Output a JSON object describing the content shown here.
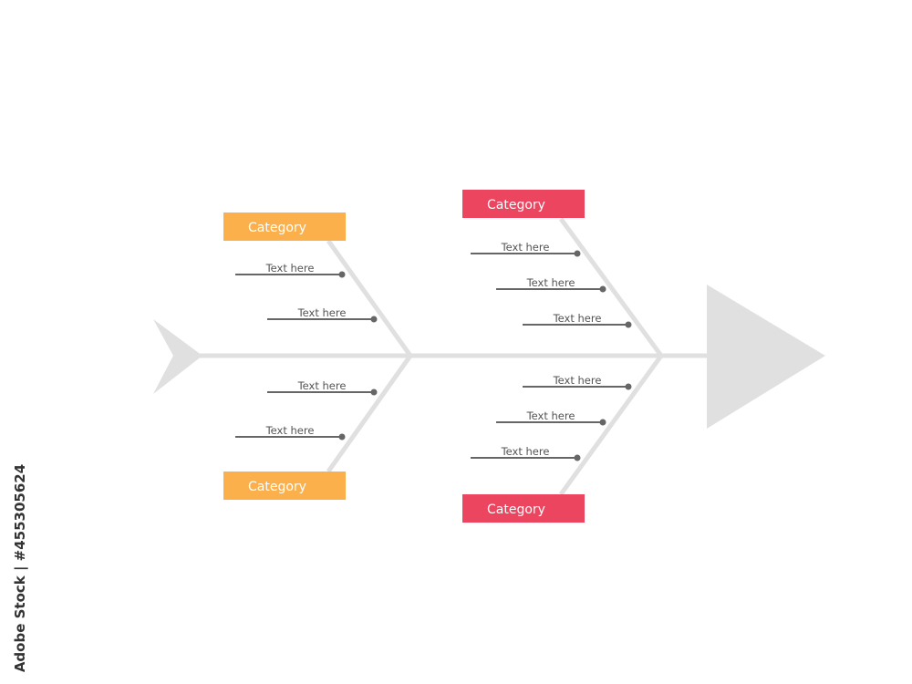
{
  "diagram": {
    "colors": {
      "bone": "#e0e0e0",
      "orange": "#fbb04b",
      "red": "#ec4560",
      "line": "#666666",
      "text": "#555555"
    },
    "branches": [
      {
        "label": "Category",
        "color": "orange",
        "items": [
          "Text here",
          "Text here"
        ]
      },
      {
        "label": "Category",
        "color": "orange",
        "items": [
          "Text here",
          "Text here"
        ]
      },
      {
        "label": "Category",
        "color": "red",
        "items": [
          "Text here",
          "Text here",
          "Text here"
        ]
      },
      {
        "label": "Category",
        "color": "red",
        "items": [
          "Text here",
          "Text here",
          "Text here"
        ]
      }
    ]
  },
  "credit": "Adobe Stock | #455305624"
}
